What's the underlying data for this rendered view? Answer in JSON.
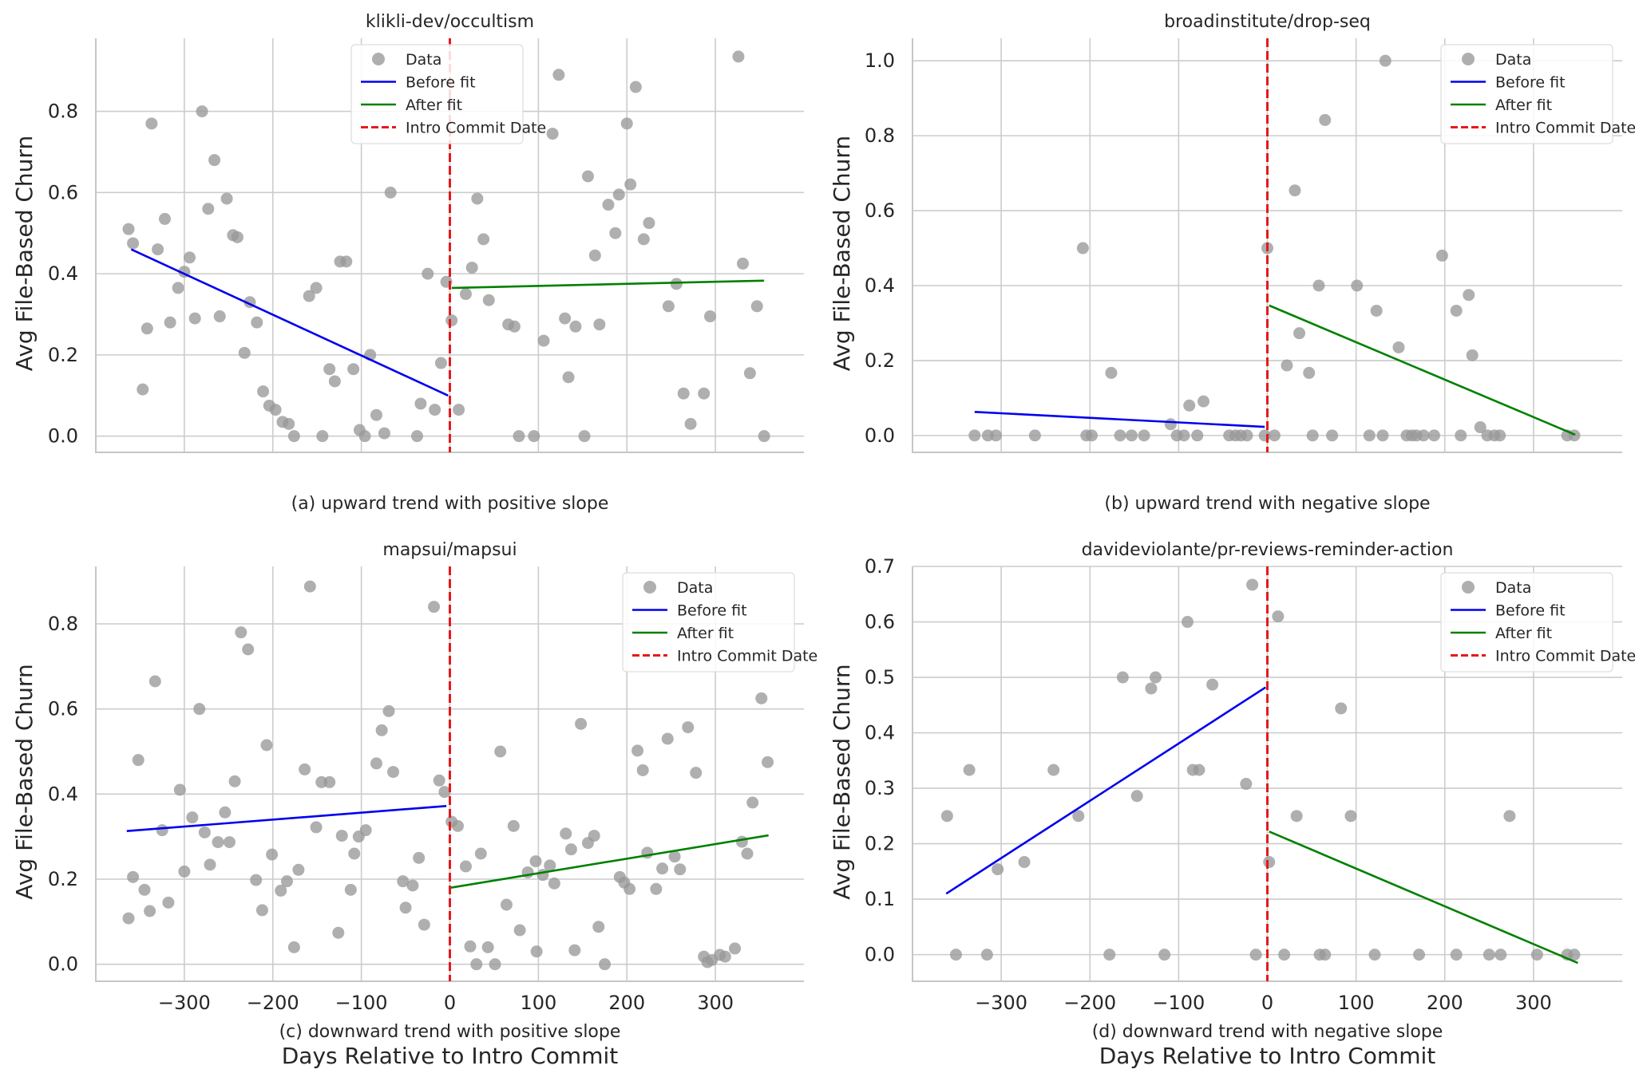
{
  "chart_data": [
    {
      "type": "scatter",
      "title": "klikli-dev/occultism",
      "caption": "(a) upward trend with positive slope",
      "xlabel": "",
      "ylabel": "Avg File-Based Churn",
      "xlim": [
        -400,
        400
      ],
      "ylim": [
        -0.04,
        0.98
      ],
      "yticks": [
        0.0,
        0.2,
        0.4,
        0.6,
        0.8
      ],
      "ytick_labels": [
        "0.0",
        "0.2",
        "0.4",
        "0.6",
        "0.8"
      ],
      "xticks": [
        -300,
        -200,
        -100,
        0,
        100,
        200,
        300
      ],
      "xtick_labels": [],
      "intro_x": 0,
      "before_fit": [
        [
          -360,
          0.46
        ],
        [
          -2,
          0.1
        ]
      ],
      "after_fit": [
        [
          2,
          0.365
        ],
        [
          355,
          0.383
        ]
      ],
      "legend": [
        "Data",
        "Before fit",
        "After fit",
        "Intro Commit Date"
      ],
      "legend_loc": "upper-center",
      "points": [
        [
          -363,
          0.51
        ],
        [
          -358,
          0.475
        ],
        [
          -347,
          0.115
        ],
        [
          -342,
          0.265
        ],
        [
          -337,
          0.77
        ],
        [
          -330,
          0.46
        ],
        [
          -322,
          0.535
        ],
        [
          -316,
          0.28
        ],
        [
          -307,
          0.365
        ],
        [
          -300,
          0.405
        ],
        [
          -294,
          0.44
        ],
        [
          -288,
          0.29
        ],
        [
          -280,
          0.8
        ],
        [
          -273,
          0.56
        ],
        [
          -266,
          0.68
        ],
        [
          -260,
          0.295
        ],
        [
          -252,
          0.585
        ],
        [
          -245,
          0.495
        ],
        [
          -240,
          0.49
        ],
        [
          -232,
          0.205
        ],
        [
          -226,
          0.33
        ],
        [
          -218,
          0.28
        ],
        [
          -211,
          0.11
        ],
        [
          -204,
          0.075
        ],
        [
          -197,
          0.065
        ],
        [
          -189,
          0.035
        ],
        [
          -182,
          0.03
        ],
        [
          -176,
          0.0
        ],
        [
          -159,
          0.345
        ],
        [
          -151,
          0.365
        ],
        [
          -144,
          0.0
        ],
        [
          -136,
          0.165
        ],
        [
          -130,
          0.135
        ],
        [
          -124,
          0.43
        ],
        [
          -117,
          0.43
        ],
        [
          -109,
          0.165
        ],
        [
          -102,
          0.015
        ],
        [
          -96,
          0.0
        ],
        [
          -90,
          0.2
        ],
        [
          -83,
          0.052
        ],
        [
          -74,
          0.007
        ],
        [
          -67,
          0.6
        ],
        [
          -37,
          0.0
        ],
        [
          -33,
          0.08
        ],
        [
          -25,
          0.4
        ],
        [
          -17,
          0.065
        ],
        [
          -10,
          0.18
        ],
        [
          -4,
          0.38
        ],
        [
          2,
          0.285
        ],
        [
          10,
          0.065
        ],
        [
          18,
          0.35
        ],
        [
          25,
          0.415
        ],
        [
          31,
          0.585
        ],
        [
          38,
          0.485
        ],
        [
          44,
          0.335
        ],
        [
          66,
          0.275
        ],
        [
          73,
          0.27
        ],
        [
          78,
          0.0
        ],
        [
          95,
          0.0
        ],
        [
          106,
          0.235
        ],
        [
          116,
          0.745
        ],
        [
          123,
          0.89
        ],
        [
          130,
          0.29
        ],
        [
          134,
          0.145
        ],
        [
          142,
          0.27
        ],
        [
          152,
          0.0
        ],
        [
          156,
          0.64
        ],
        [
          164,
          0.445
        ],
        [
          169,
          0.275
        ],
        [
          179,
          0.57
        ],
        [
          187,
          0.5
        ],
        [
          191,
          0.595
        ],
        [
          200,
          0.77
        ],
        [
          204,
          0.62
        ],
        [
          210,
          0.86
        ],
        [
          219,
          0.485
        ],
        [
          225,
          0.525
        ],
        [
          247,
          0.32
        ],
        [
          256,
          0.375
        ],
        [
          264,
          0.105
        ],
        [
          272,
          0.03
        ],
        [
          287,
          0.105
        ],
        [
          294,
          0.295
        ],
        [
          326,
          0.935
        ],
        [
          331,
          0.425
        ],
        [
          339,
          0.155
        ],
        [
          347,
          0.32
        ],
        [
          355,
          0.0
        ]
      ]
    },
    {
      "type": "scatter",
      "title": "broadinstitute/drop-seq",
      "caption": "(b) upward trend with negative slope",
      "xlabel": "",
      "ylabel": "Avg File-Based Churn",
      "xlim": [
        -400,
        400
      ],
      "ylim": [
        -0.045,
        1.06
      ],
      "yticks": [
        0.0,
        0.2,
        0.4,
        0.6,
        0.8,
        1.0
      ],
      "ytick_labels": [
        "0.0",
        "0.2",
        "0.4",
        "0.6",
        "0.8",
        "1.0"
      ],
      "xticks": [
        -300,
        -200,
        -100,
        0,
        100,
        200,
        300
      ],
      "xtick_labels": [],
      "intro_x": 0,
      "before_fit": [
        [
          -330,
          0.063
        ],
        [
          -3,
          0.023
        ]
      ],
      "after_fit": [
        [
          2,
          0.347
        ],
        [
          347,
          0.002
        ]
      ],
      "legend": [
        "Data",
        "Before fit",
        "After fit",
        "Intro Commit Date"
      ],
      "legend_loc": "top-right",
      "points": [
        [
          -330,
          0.0
        ],
        [
          -315,
          0.0
        ],
        [
          -306,
          0.0
        ],
        [
          -262,
          0.0
        ],
        [
          -208,
          0.5
        ],
        [
          -204,
          0.0
        ],
        [
          -198,
          0.0
        ],
        [
          -176,
          0.167
        ],
        [
          -166,
          0.0
        ],
        [
          -153,
          0.0
        ],
        [
          -139,
          0.0
        ],
        [
          -109,
          0.03
        ],
        [
          -102,
          0.0
        ],
        [
          -94,
          0.0
        ],
        [
          -88,
          0.08
        ],
        [
          -79,
          0.0
        ],
        [
          -72,
          0.091
        ],
        [
          -43,
          0.0
        ],
        [
          -36,
          0.0
        ],
        [
          -30,
          0.0
        ],
        [
          -23,
          0.0
        ],
        [
          -3,
          0.0
        ],
        [
          0,
          0.5
        ],
        [
          8,
          0.0
        ],
        [
          22,
          0.187
        ],
        [
          31,
          0.654
        ],
        [
          36,
          0.273
        ],
        [
          47,
          0.167
        ],
        [
          51,
          0.0
        ],
        [
          58,
          0.4
        ],
        [
          65,
          0.842
        ],
        [
          73,
          0.0
        ],
        [
          101,
          0.4
        ],
        [
          115,
          0.0
        ],
        [
          123,
          0.333
        ],
        [
          130,
          0.0
        ],
        [
          133,
          1.0
        ],
        [
          148,
          0.235
        ],
        [
          157,
          0.0
        ],
        [
          163,
          0.0
        ],
        [
          168,
          0.0
        ],
        [
          176,
          0.0
        ],
        [
          188,
          0.0
        ],
        [
          197,
          0.48
        ],
        [
          213,
          0.333
        ],
        [
          218,
          0.0
        ],
        [
          227,
          0.375
        ],
        [
          231,
          0.214
        ],
        [
          240,
          0.022
        ],
        [
          248,
          0.0
        ],
        [
          256,
          0.0
        ],
        [
          262,
          0.0
        ],
        [
          338,
          0.0
        ],
        [
          346,
          0.0
        ]
      ]
    },
    {
      "type": "scatter",
      "title": "mapsui/mapsui",
      "caption": "(c) downward trend with positive slope",
      "xlabel": "Days Relative to Intro Commit",
      "ylabel": "Avg File-Based Churn",
      "xlim": [
        -400,
        400
      ],
      "ylim": [
        -0.04,
        0.935
      ],
      "yticks": [
        0.0,
        0.2,
        0.4,
        0.6,
        0.8
      ],
      "ytick_labels": [
        "0.0",
        "0.2",
        "0.4",
        "0.6",
        "0.8"
      ],
      "xticks": [
        -300,
        -200,
        -100,
        0,
        100,
        200,
        300
      ],
      "xtick_labels": [
        "−300",
        "−200",
        "−100",
        "0",
        "100",
        "200",
        "300"
      ],
      "intro_x": 0,
      "before_fit": [
        [
          -365,
          0.313
        ],
        [
          -4,
          0.372
        ]
      ],
      "after_fit": [
        [
          1,
          0.18
        ],
        [
          360,
          0.303
        ]
      ],
      "legend": [
        "Data",
        "Before fit",
        "After fit",
        "Intro Commit Date"
      ],
      "legend_loc": "top-right",
      "points": [
        [
          -363,
          0.108
        ],
        [
          -358,
          0.205
        ],
        [
          -352,
          0.48
        ],
        [
          -345,
          0.175
        ],
        [
          -339,
          0.125
        ],
        [
          -333,
          0.665
        ],
        [
          -325,
          0.315
        ],
        [
          -318,
          0.145
        ],
        [
          -305,
          0.41
        ],
        [
          -300,
          0.218
        ],
        [
          -291,
          0.345
        ],
        [
          -283,
          0.6
        ],
        [
          -277,
          0.31
        ],
        [
          -271,
          0.234
        ],
        [
          -262,
          0.287
        ],
        [
          -254,
          0.357
        ],
        [
          -249,
          0.287
        ],
        [
          -243,
          0.43
        ],
        [
          -236,
          0.78
        ],
        [
          -228,
          0.74
        ],
        [
          -219,
          0.198
        ],
        [
          -212,
          0.127
        ],
        [
          -207,
          0.515
        ],
        [
          -201,
          0.258
        ],
        [
          -191,
          0.173
        ],
        [
          -184,
          0.195
        ],
        [
          -176,
          0.04
        ],
        [
          -171,
          0.222
        ],
        [
          -164,
          0.458
        ],
        [
          -158,
          0.888
        ],
        [
          -151,
          0.322
        ],
        [
          -145,
          0.428
        ],
        [
          -136,
          0.428
        ],
        [
          -126,
          0.074
        ],
        [
          -122,
          0.302
        ],
        [
          -112,
          0.175
        ],
        [
          -108,
          0.26
        ],
        [
          -103,
          0.3
        ],
        [
          -95,
          0.315
        ],
        [
          -83,
          0.472
        ],
        [
          -77,
          0.55
        ],
        [
          -69,
          0.595
        ],
        [
          -64,
          0.452
        ],
        [
          -53,
          0.195
        ],
        [
          -50,
          0.133
        ],
        [
          -42,
          0.185
        ],
        [
          -35,
          0.25
        ],
        [
          -29,
          0.093
        ],
        [
          -18,
          0.84
        ],
        [
          -12,
          0.432
        ],
        [
          -6,
          0.405
        ],
        [
          2,
          0.335
        ],
        [
          9,
          0.325
        ],
        [
          18,
          0.23
        ],
        [
          23,
          0.042
        ],
        [
          30,
          0.0
        ],
        [
          35,
          0.26
        ],
        [
          43,
          0.04
        ],
        [
          51,
          0.0
        ],
        [
          57,
          0.5
        ],
        [
          64,
          0.14
        ],
        [
          72,
          0.325
        ],
        [
          79,
          0.08
        ],
        [
          88,
          0.216
        ],
        [
          97,
          0.242
        ],
        [
          98,
          0.03
        ],
        [
          105,
          0.21
        ],
        [
          113,
          0.232
        ],
        [
          118,
          0.19
        ],
        [
          131,
          0.307
        ],
        [
          137,
          0.27
        ],
        [
          141,
          0.033
        ],
        [
          148,
          0.565
        ],
        [
          156,
          0.285
        ],
        [
          163,
          0.302
        ],
        [
          168,
          0.088
        ],
        [
          175,
          0.0
        ],
        [
          192,
          0.205
        ],
        [
          197,
          0.192
        ],
        [
          203,
          0.177
        ],
        [
          212,
          0.502
        ],
        [
          218,
          0.456
        ],
        [
          223,
          0.262
        ],
        [
          233,
          0.177
        ],
        [
          240,
          0.225
        ],
        [
          246,
          0.53
        ],
        [
          254,
          0.253
        ],
        [
          260,
          0.223
        ],
        [
          269,
          0.557
        ],
        [
          278,
          0.45
        ],
        [
          287,
          0.018
        ],
        [
          291,
          0.005
        ],
        [
          296,
          0.01
        ],
        [
          305,
          0.022
        ],
        [
          311,
          0.018
        ],
        [
          322,
          0.037
        ],
        [
          330,
          0.288
        ],
        [
          336,
          0.26
        ],
        [
          342,
          0.38
        ],
        [
          352,
          0.625
        ],
        [
          359,
          0.475
        ]
      ]
    },
    {
      "type": "scatter",
      "title": "davideviolante/pr-reviews-reminder-action",
      "caption": "(d) downward trend with negative slope",
      "xlabel": "Days Relative to Intro Commit",
      "ylabel": "Avg File-Based Churn",
      "xlim": [
        -400,
        400
      ],
      "ylim": [
        -0.048,
        0.7
      ],
      "yticks": [
        0.0,
        0.1,
        0.2,
        0.3,
        0.4,
        0.5,
        0.6,
        0.7
      ],
      "ytick_labels": [
        "0.0",
        "0.1",
        "0.2",
        "0.3",
        "0.4",
        "0.5",
        "0.6",
        "0.7"
      ],
      "xticks": [
        -300,
        -200,
        -100,
        0,
        100,
        200,
        300
      ],
      "xtick_labels": [
        "−300",
        "−200",
        "−100",
        "0",
        "100",
        "200",
        "300"
      ],
      "intro_x": 0,
      "before_fit": [
        [
          -362,
          0.11
        ],
        [
          -2,
          0.482
        ]
      ],
      "after_fit": [
        [
          2,
          0.222
        ],
        [
          350,
          -0.015
        ]
      ],
      "legend": [
        "Data",
        "Before fit",
        "After fit",
        "Intro Commit Date"
      ],
      "legend_loc": "top-right",
      "points": [
        [
          -361,
          0.25
        ],
        [
          -351,
          0.0
        ],
        [
          -336,
          0.333
        ],
        [
          -316,
          0.0
        ],
        [
          -304,
          0.154
        ],
        [
          -274,
          0.167
        ],
        [
          -241,
          0.333
        ],
        [
          -213,
          0.25
        ],
        [
          -178,
          0.0
        ],
        [
          -163,
          0.5
        ],
        [
          -147,
          0.286
        ],
        [
          -131,
          0.48
        ],
        [
          -126,
          0.5
        ],
        [
          -116,
          0.0
        ],
        [
          -90,
          0.6
        ],
        [
          -84,
          0.333
        ],
        [
          -77,
          0.333
        ],
        [
          -62,
          0.487
        ],
        [
          -24,
          0.308
        ],
        [
          -17,
          0.667
        ],
        [
          -13,
          0.0
        ],
        [
          2,
          0.167
        ],
        [
          12,
          0.61
        ],
        [
          19,
          0.0
        ],
        [
          33,
          0.25
        ],
        [
          59,
          0.0
        ],
        [
          65,
          0.0
        ],
        [
          83,
          0.444
        ],
        [
          94,
          0.25
        ],
        [
          121,
          0.0
        ],
        [
          171,
          0.0
        ],
        [
          213,
          0.0
        ],
        [
          250,
          0.0
        ],
        [
          263,
          0.0
        ],
        [
          273,
          0.25
        ],
        [
          304,
          0.0
        ],
        [
          338,
          0.0
        ],
        [
          346,
          0.0
        ]
      ]
    }
  ]
}
